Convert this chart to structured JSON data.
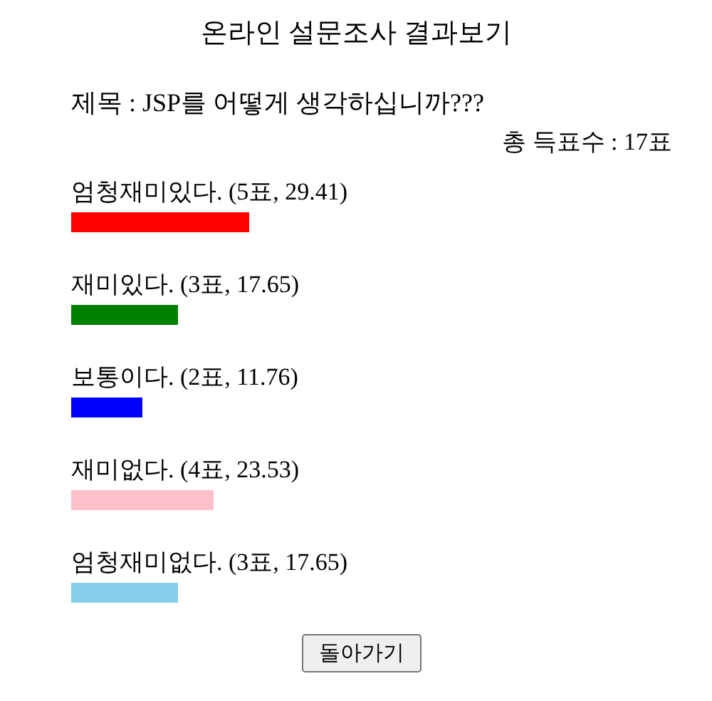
{
  "chart_data": {
    "type": "bar",
    "orientation": "horizontal",
    "title": "온라인 설문조사 결과보기",
    "subtitle": "제목 : JSP를 어떻게 생각하십니까???",
    "annotations": [
      "총 득표수 : 17표",
      "돌아가기"
    ],
    "categories": [
      "엄청재미있다.",
      "재미있다.",
      "보통이다.",
      "재미없다.",
      "엄청재미없다."
    ],
    "values": [
      29.41,
      17.65,
      11.76,
      23.53,
      17.65
    ],
    "value_labels": [
      "(5표, 29.41)",
      "(3표, 17.65)",
      "(2표, 11.76)",
      "(4표, 23.53)",
      "(3표, 17.65)"
    ],
    "colors": [
      "#ff0000",
      "#008000",
      "#0000ff",
      "#ffc0cb",
      "#87ceeb"
    ]
  }
}
